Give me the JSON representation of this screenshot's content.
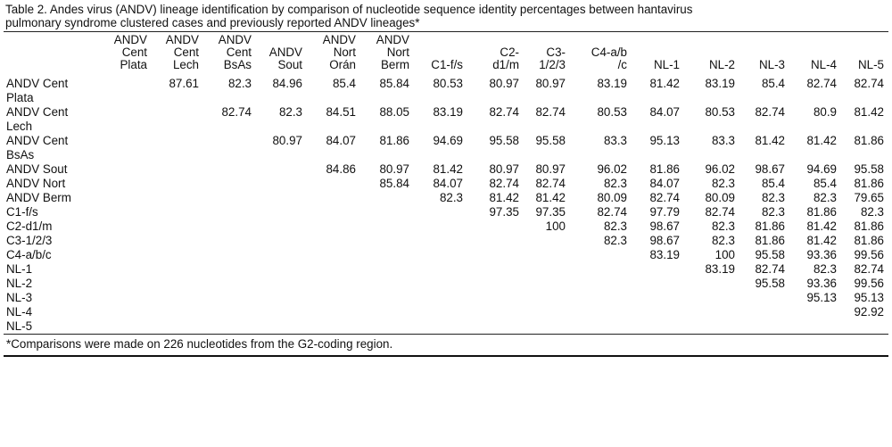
{
  "caption_line1": "Table 2. Andes virus (ANDV) lineage identification by comparison of nucleotide sequence identity percentages between hantavirus",
  "caption_line2": "pulmonary syndrome clustered cases and previously reported ANDV lineages*",
  "columns": [
    [
      "ANDV",
      "Cent",
      "Plata"
    ],
    [
      "ANDV",
      "Cent",
      "Lech"
    ],
    [
      "ANDV",
      "Cent",
      "BsAs"
    ],
    [
      "ANDV",
      "Sout"
    ],
    [
      "ANDV",
      "Nort",
      "Orán"
    ],
    [
      "ANDV",
      "Nort",
      "Berm"
    ],
    [
      "C1-f/s"
    ],
    [
      "C2-",
      "d1/m"
    ],
    [
      "C3-",
      "1/2/3"
    ],
    [
      "C4-a/b",
      "/c"
    ],
    [
      "NL-1"
    ],
    [
      "NL-2"
    ],
    [
      "NL-3"
    ],
    [
      "NL-4"
    ],
    [
      "NL-5"
    ]
  ],
  "rows": [
    {
      "label": [
        "ANDV Cent",
        "Plata"
      ],
      "values": [
        "",
        "87.61",
        "82.3",
        "84.96",
        "85.4",
        "85.84",
        "80.53",
        "80.97",
        "80.97",
        "83.19",
        "81.42",
        "83.19",
        "85.4",
        "82.74",
        "82.74"
      ]
    },
    {
      "label": [
        "ANDV Cent",
        "Lech"
      ],
      "values": [
        "",
        "",
        "82.74",
        "82.3",
        "84.51",
        "88.05",
        "83.19",
        "82.74",
        "82.74",
        "80.53",
        "84.07",
        "80.53",
        "82.74",
        "80.9",
        "81.42"
      ]
    },
    {
      "label": [
        "ANDV Cent",
        "BsAs"
      ],
      "values": [
        "",
        "",
        "",
        "80.97",
        "84.07",
        "81.86",
        "94.69",
        "95.58",
        "95.58",
        "83.3",
        "95.13",
        "83.3",
        "81.42",
        "81.42",
        "81.86"
      ]
    },
    {
      "label": [
        "ANDV Sout"
      ],
      "values": [
        "",
        "",
        "",
        "",
        "84.86",
        "80.97",
        "81.42",
        "80.97",
        "80.97",
        "96.02",
        "81.86",
        "96.02",
        "98.67",
        "94.69",
        "95.58"
      ]
    },
    {
      "label": [
        "ANDV Nort"
      ],
      "values": [
        "",
        "",
        "",
        "",
        "",
        "85.84",
        "84.07",
        "82.74",
        "82.74",
        "82.3",
        "84.07",
        "82.3",
        "85.4",
        "85.4",
        "81.86"
      ]
    },
    {
      "label": [
        "ANDV Berm"
      ],
      "values": [
        "",
        "",
        "",
        "",
        "",
        "",
        "82.3",
        "81.42",
        "81.42",
        "80.09",
        "82.74",
        "80.09",
        "82.3",
        "82.3",
        "79.65"
      ]
    },
    {
      "label": [
        "C1-f/s"
      ],
      "values": [
        "",
        "",
        "",
        "",
        "",
        "",
        "",
        "97.35",
        "97.35",
        "82.74",
        "97.79",
        "82.74",
        "82.3",
        "81.86",
        "82.3"
      ]
    },
    {
      "label": [
        "C2-d1/m"
      ],
      "values": [
        "",
        "",
        "",
        "",
        "",
        "",
        "",
        "",
        "100",
        "82.3",
        "98.67",
        "82.3",
        "81.86",
        "81.42",
        "81.86"
      ]
    },
    {
      "label": [
        "C3-1/2/3"
      ],
      "values": [
        "",
        "",
        "",
        "",
        "",
        "",
        "",
        "",
        "",
        "82.3",
        "98.67",
        "82.3",
        "81.86",
        "81.42",
        "81.86"
      ]
    },
    {
      "label": [
        "C4-a/b/c"
      ],
      "values": [
        "",
        "",
        "",
        "",
        "",
        "",
        "",
        "",
        "",
        "",
        "83.19",
        "100",
        "95.58",
        "93.36",
        "99.56"
      ]
    },
    {
      "label": [
        "NL-1"
      ],
      "values": [
        "",
        "",
        "",
        "",
        "",
        "",
        "",
        "",
        "",
        "",
        "",
        "83.19",
        "82.74",
        "82.3",
        "82.74"
      ]
    },
    {
      "label": [
        "NL-2"
      ],
      "values": [
        "",
        "",
        "",
        "",
        "",
        "",
        "",
        "",
        "",
        "",
        "",
        "",
        "95.58",
        "93.36",
        "99.56"
      ]
    },
    {
      "label": [
        "NL-3"
      ],
      "values": [
        "",
        "",
        "",
        "",
        "",
        "",
        "",
        "",
        "",
        "",
        "",
        "",
        "",
        "95.13",
        "95.13"
      ]
    },
    {
      "label": [
        "NL-4"
      ],
      "values": [
        "",
        "",
        "",
        "",
        "",
        "",
        "",
        "",
        "",
        "",
        "",
        "",
        "",
        "",
        "92.92"
      ]
    },
    {
      "label": [
        "NL-5"
      ],
      "values": [
        "",
        "",
        "",
        "",
        "",
        "",
        "",
        "",
        "",
        "",
        "",
        "",
        "",
        "",
        ""
      ]
    }
  ],
  "footnote": "*Comparisons were made on 226 nucleotides from the G2-coding region."
}
